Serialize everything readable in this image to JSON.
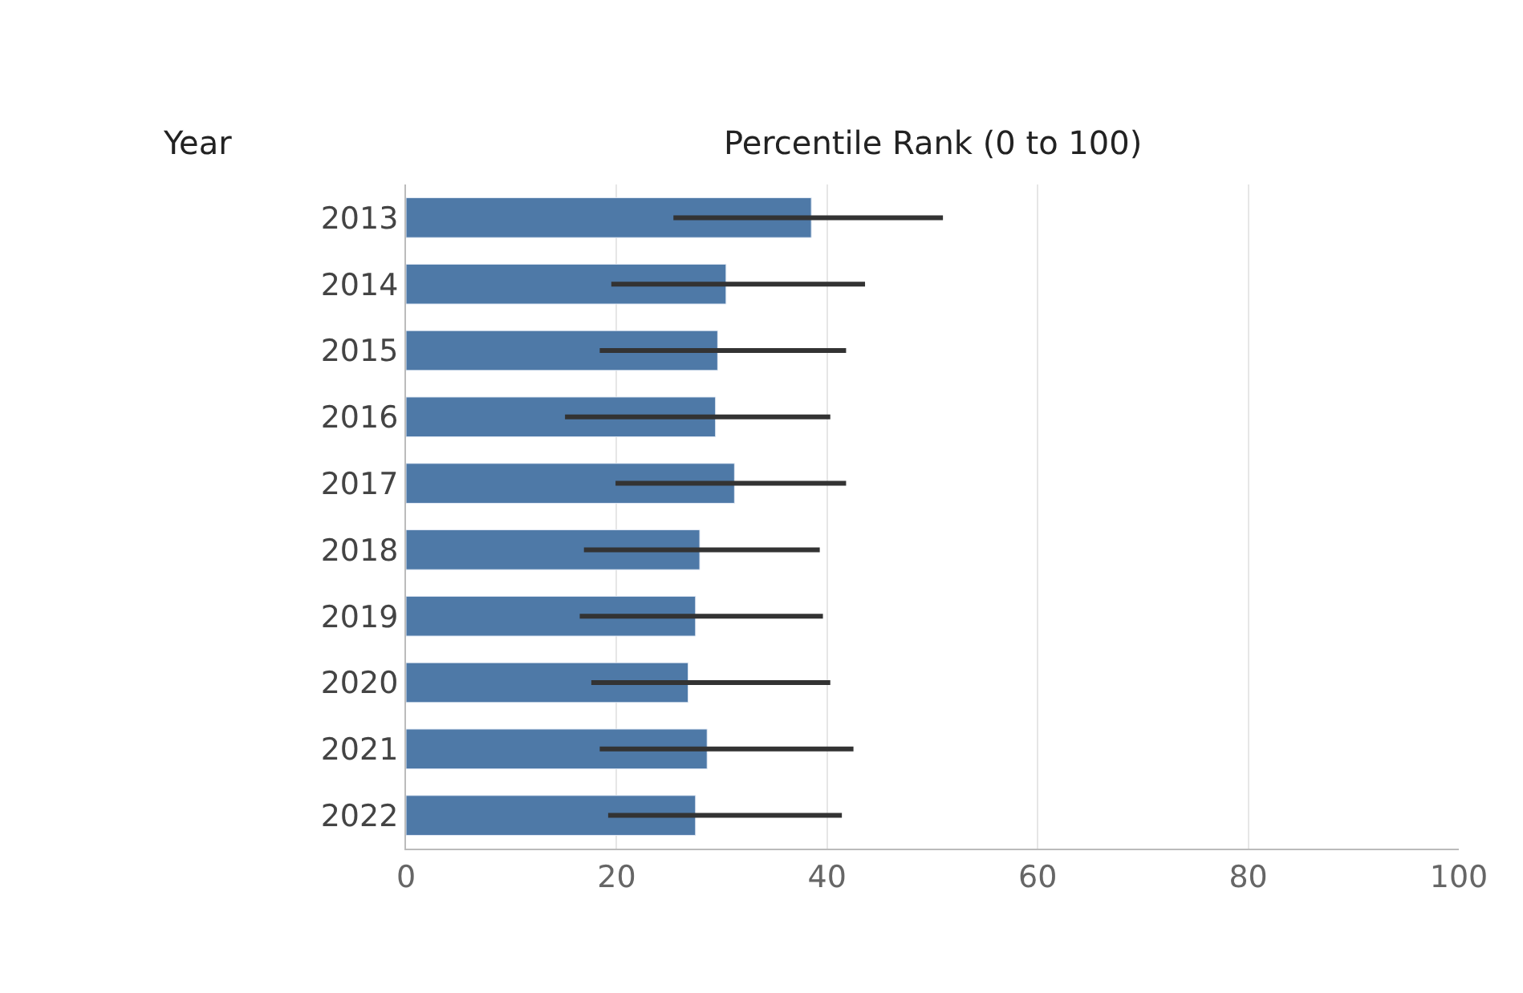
{
  "chart_data": {
    "type": "bar",
    "orientation": "horizontal",
    "xlabel": "Percentile Rank (0 to 100)",
    "ylabel": "Year",
    "categories": [
      "2013",
      "2014",
      "2015",
      "2016",
      "2017",
      "2018",
      "2019",
      "2020",
      "2021",
      "2022"
    ],
    "values": [
      38.5,
      30.4,
      29.6,
      29.4,
      31.2,
      27.9,
      27.5,
      26.8,
      28.6,
      27.5
    ],
    "errors": [
      [
        25.4,
        51
      ],
      [
        19.5,
        43.6
      ],
      [
        18.4,
        41.8
      ],
      [
        15.1,
        40.3
      ],
      [
        19.9,
        41.8
      ],
      [
        16.9,
        39.3
      ],
      [
        16.5,
        39.6
      ],
      [
        17.6,
        40.3
      ],
      [
        18.4,
        42.5
      ],
      [
        19.2,
        41.4
      ]
    ],
    "color": "#4e79a7",
    "xlim": [
      0,
      100
    ],
    "xticks": [
      0,
      20,
      40,
      60,
      80,
      100
    ],
    "grid": "x"
  }
}
